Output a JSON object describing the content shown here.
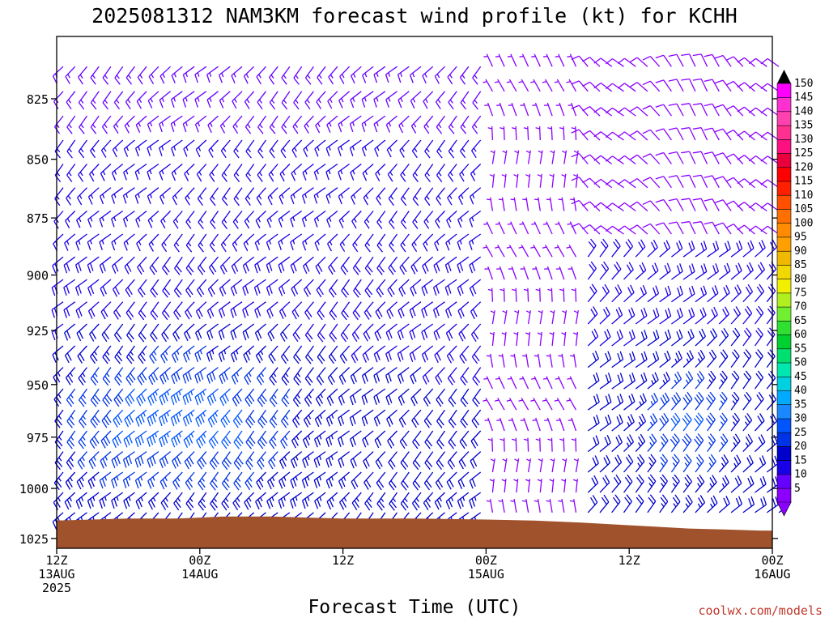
{
  "chart_data": {
    "type": "wind-barb-profile",
    "title": "2025081312 NAM3KM forecast wind profile (kt) for KCHH",
    "xlabel": "Forecast Time (UTC)",
    "ylabel": "",
    "x_ticks": [
      {
        "hour": 0,
        "lines": [
          "12Z",
          "13AUG",
          "2025"
        ]
      },
      {
        "hour": 12,
        "lines": [
          "00Z",
          "14AUG"
        ]
      },
      {
        "hour": 24,
        "lines": [
          "12Z"
        ]
      },
      {
        "hour": 36,
        "lines": [
          "00Z",
          "15AUG"
        ]
      },
      {
        "hour": 48,
        "lines": [
          "12Z"
        ]
      },
      {
        "hour": 60,
        "lines": [
          "00Z",
          "16AUG"
        ]
      }
    ],
    "xlim_hours": [
      0,
      60
    ],
    "y_ticks": [
      "825",
      "850",
      "875",
      "900",
      "925",
      "950",
      "975",
      "1000",
      "1025"
    ],
    "ylim_hpa": [
      1030,
      800
    ],
    "colorbar": {
      "labels": [
        "5",
        "10",
        "15",
        "20",
        "25",
        "30",
        "35",
        "40",
        "45",
        "50",
        "55",
        "60",
        "65",
        "70",
        "75",
        "80",
        "85",
        "90",
        "95",
        "100",
        "105",
        "110",
        "115",
        "120",
        "125",
        "130",
        "135",
        "140",
        "145",
        "150"
      ],
      "colors": [
        "#8b00ff",
        "#6600ff",
        "#1a00e6",
        "#0000cc",
        "#0033e6",
        "#0055ff",
        "#1a88ff",
        "#00aaff",
        "#00d0e0",
        "#00e8b0",
        "#00e070",
        "#00d030",
        "#30e030",
        "#70f030",
        "#b0f020",
        "#f0f000",
        "#f0d800",
        "#f0b800",
        "#ffa000",
        "#ff8c00",
        "#ff7000",
        "#ff5000",
        "#ff2000",
        "#ff0000",
        "#e8003c",
        "#ff1080",
        "#ff3090",
        "#ff40b0",
        "#ff30d0",
        "#ff00ff"
      ]
    },
    "wind_regimes": [
      {
        "hours": [
          0,
          36
        ],
        "layer_hpa": [
          810,
          1015
        ],
        "direction": "southwest",
        "speed_kt": [
          10,
          35
        ]
      },
      {
        "hours": [
          36,
          42
        ],
        "layer_hpa": [
          810,
          1010
        ],
        "direction": "variable/northerly",
        "speed_kt": [
          5,
          10
        ]
      },
      {
        "hours": [
          42,
          60
        ],
        "layer_hpa": [
          810,
          890
        ],
        "direction": "northwest",
        "speed_kt": [
          5,
          10
        ]
      },
      {
        "hours": [
          44,
          60
        ],
        "layer_hpa": [
          890,
          1015
        ],
        "direction": "northeast",
        "speed_kt": [
          15,
          30
        ]
      }
    ],
    "terrain": {
      "color": "#a0522d",
      "surface_hpa": [
        [
          0,
          1016
        ],
        [
          3,
          1015.5
        ],
        [
          6,
          1015
        ],
        [
          10,
          1015
        ],
        [
          14,
          1014
        ],
        [
          18,
          1014
        ],
        [
          24,
          1015
        ],
        [
          30,
          1015
        ],
        [
          36,
          1015.5
        ],
        [
          40,
          1016
        ],
        [
          44,
          1017
        ],
        [
          47,
          1018
        ],
        [
          50,
          1019
        ],
        [
          53,
          1020
        ],
        [
          56,
          1020.5
        ],
        [
          59,
          1021
        ],
        [
          60,
          1021
        ]
      ]
    }
  },
  "credit": "coolwx.com/models"
}
